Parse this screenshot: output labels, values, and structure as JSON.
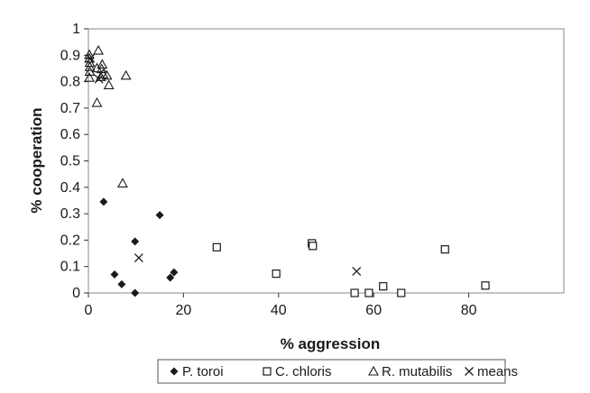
{
  "chart_data": {
    "type": "scatter",
    "title": "",
    "xlabel": "% aggression",
    "ylabel": "% cooperation",
    "xlim": [
      0,
      100
    ],
    "ylim": [
      0,
      1
    ],
    "x_ticks": [
      0,
      20,
      40,
      60,
      80
    ],
    "x_tick_labels": [
      "0",
      "20",
      "40",
      "60",
      "80"
    ],
    "y_ticks": [
      0,
      0.1,
      0.2,
      0.3,
      0.4,
      0.5,
      0.6,
      0.7,
      0.8,
      0.9,
      1
    ],
    "y_tick_labels": [
      "0",
      "0.1",
      "0.2",
      "0.3",
      "0.4",
      "0.5",
      "0.6",
      "0.7",
      "0.8",
      "0.9",
      "1"
    ],
    "grid": false,
    "legend_position": "bottom",
    "series": [
      {
        "name": "P. toroi",
        "marker": "diamond",
        "color": "#1a1a1a",
        "points": [
          [
            3.2,
            0.345
          ],
          [
            15,
            0.295
          ],
          [
            9.8,
            0.195
          ],
          [
            5.5,
            0.07
          ],
          [
            7,
            0.033
          ],
          [
            18,
            0.078
          ],
          [
            17.2,
            0.058
          ],
          [
            9.8,
            0.0
          ]
        ]
      },
      {
        "name": "C. chloris",
        "marker": "square",
        "color": "#1a1a1a",
        "points": [
          [
            27,
            0.173
          ],
          [
            39.5,
            0.073
          ],
          [
            47,
            0.188
          ],
          [
            47.2,
            0.178
          ],
          [
            56,
            0.0
          ],
          [
            59,
            0.0
          ],
          [
            62,
            0.025
          ],
          [
            65.8,
            0.0
          ],
          [
            75,
            0.165
          ],
          [
            83.5,
            0.028
          ]
        ]
      },
      {
        "name": "R. mutabilis",
        "marker": "triangle",
        "color": "#1a1a1a",
        "points": [
          [
            0.2,
            0.902
          ],
          [
            0.2,
            0.888
          ],
          [
            0.3,
            0.872
          ],
          [
            0.3,
            0.856
          ],
          [
            0.3,
            0.838
          ],
          [
            0.2,
            0.815
          ],
          [
            2.1,
            0.918
          ],
          [
            2.9,
            0.865
          ],
          [
            1.8,
            0.851
          ],
          [
            2.8,
            0.848
          ],
          [
            3.1,
            0.828
          ],
          [
            2.6,
            0.818
          ],
          [
            3.9,
            0.823
          ],
          [
            7.9,
            0.823
          ],
          [
            4.3,
            0.787
          ],
          [
            1.8,
            0.72
          ],
          [
            7.2,
            0.415
          ]
        ]
      },
      {
        "name": "means",
        "marker": "x",
        "color": "#1a1a1a",
        "points": [
          [
            0.4,
            0.888
          ],
          [
            2.2,
            0.81
          ],
          [
            10.6,
            0.133
          ],
          [
            56.4,
            0.082
          ]
        ]
      }
    ]
  }
}
